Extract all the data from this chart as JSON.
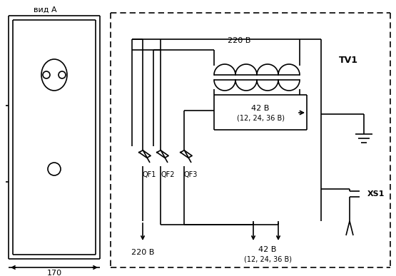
{
  "bg_color": "#ffffff",
  "lc": "#000000",
  "lw": 1.2,
  "fig_width": 5.55,
  "fig_height": 3.87,
  "dpi": 100,
  "label_vid_a": "вид А",
  "label_220v_top": "220 В",
  "label_tv1": "TV1",
  "label_42v_box_1": "42 В",
  "label_42v_box_2": "(12, 24, 36 В)",
  "label_qf1": "QF1",
  "label_qf2": "QF2",
  "label_qf3": "QF3",
  "label_xs1": "XS1",
  "label_220v_bot": "220 В",
  "label_42v_bot_1": "42 В",
  "label_42v_bot_2": "(12, 24, 36 В)",
  "label_170": "170"
}
